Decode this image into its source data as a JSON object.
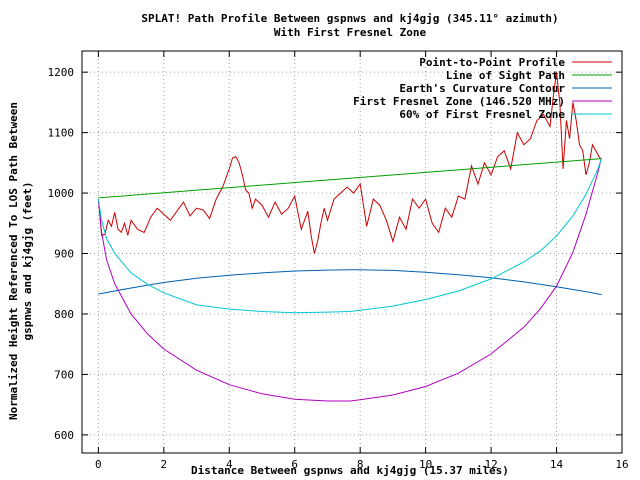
{
  "chart_data": {
    "type": "line",
    "title": "SPLAT! Path Profile Between gspnws and kj4gjg (345.11° azimuth)",
    "subtitle": "With First Fresnel Zone",
    "xlabel": "Distance Between gspnws and kj4gjg (15.37 miles)",
    "ylabel_line1": "Normalized Height Referenced To LOS Path Between",
    "ylabel_line2": "gspnws and kj4gjg (feet)",
    "xlim": [
      -0.5,
      16
    ],
    "ylim": [
      570,
      1235
    ],
    "x_ticks": [
      0,
      2,
      4,
      6,
      8,
      10,
      12,
      14,
      16
    ],
    "x_tick_labels": [
      "0",
      "2",
      "4",
      "6",
      "8",
      "10",
      "12",
      "14",
      "16"
    ],
    "y_ticks": [
      600,
      700,
      800,
      900,
      1000,
      1100,
      1200
    ],
    "y_tick_labels": [
      "600",
      "700",
      "800",
      "900",
      "1000",
      "1100",
      "1200"
    ],
    "grid": true,
    "legend_position": "top-right",
    "series": [
      {
        "name": "Point-to-Point Profile",
        "color": "#cc0000",
        "x": [
          0,
          0.1,
          0.2,
          0.3,
          0.4,
          0.5,
          0.6,
          0.7,
          0.8,
          0.9,
          1.0,
          1.2,
          1.4,
          1.6,
          1.8,
          2.0,
          2.2,
          2.4,
          2.6,
          2.8,
          3.0,
          3.2,
          3.4,
          3.6,
          3.8,
          4.0,
          4.1,
          4.2,
          4.3,
          4.4,
          4.5,
          4.6,
          4.7,
          4.8,
          5.0,
          5.2,
          5.4,
          5.6,
          5.8,
          6.0,
          6.2,
          6.4,
          6.5,
          6.6,
          6.7,
          6.8,
          6.9,
          7.0,
          7.2,
          7.4,
          7.6,
          7.8,
          8.0,
          8.2,
          8.4,
          8.6,
          8.8,
          9.0,
          9.2,
          9.4,
          9.6,
          9.8,
          10.0,
          10.2,
          10.4,
          10.6,
          10.8,
          11.0,
          11.2,
          11.4,
          11.6,
          11.8,
          12.0,
          12.2,
          12.4,
          12.6,
          12.8,
          13.0,
          13.2,
          13.4,
          13.6,
          13.8,
          13.9,
          14.0,
          14.1,
          14.2,
          14.3,
          14.4,
          14.5,
          14.6,
          14.7,
          14.8,
          14.9,
          15.0,
          15.1,
          15.2,
          15.3,
          15.37
        ],
        "y": [
          990,
          930,
          932,
          955,
          945,
          968,
          940,
          935,
          950,
          930,
          955,
          940,
          935,
          960,
          975,
          965,
          955,
          970,
          985,
          962,
          975,
          972,
          958,
          990,
          1010,
          1040,
          1058,
          1060,
          1050,
          1030,
          1005,
          1000,
          975,
          990,
          980,
          960,
          985,
          965,
          975,
          995,
          940,
          970,
          930,
          900,
          920,
          950,
          975,
          955,
          990,
          1000,
          1010,
          1000,
          1015,
          945,
          990,
          980,
          955,
          920,
          960,
          940,
          990,
          975,
          990,
          950,
          935,
          975,
          960,
          995,
          990,
          1045,
          1015,
          1050,
          1030,
          1060,
          1070,
          1040,
          1100,
          1080,
          1090,
          1120,
          1130,
          1110,
          1160,
          1200,
          1150,
          1040,
          1120,
          1090,
          1150,
          1120,
          1080,
          1070,
          1030,
          1050,
          1080,
          1070,
          1060,
          1055
        ]
      },
      {
        "name": "Line of Sight Path",
        "color": "#00a000",
        "x": [
          0,
          15.37
        ],
        "y": [
          992,
          1057
        ]
      },
      {
        "name": "Earth's Curvature Contour",
        "color": "#0060b0",
        "x": [
          0,
          1,
          2,
          3,
          4,
          5,
          6,
          7,
          7.69,
          8,
          9,
          10,
          11,
          12,
          13,
          14,
          15,
          15.37
        ],
        "y": [
          833,
          843,
          852,
          859,
          864,
          868,
          871,
          872.5,
          873,
          873,
          872,
          869,
          865,
          860,
          853,
          845,
          836,
          832
        ]
      },
      {
        "name": "First Fresnel Zone (146.520 MHz)",
        "color": "#b000c0",
        "x": [
          0,
          0.1,
          0.25,
          0.5,
          1,
          1.5,
          2,
          3,
          4,
          5,
          6,
          7,
          7.69,
          8,
          9,
          10,
          11,
          12,
          13,
          13.5,
          14,
          14.5,
          14.9,
          15.1,
          15.25,
          15.37
        ],
        "y": [
          990,
          935,
          890,
          850,
          800,
          767,
          742,
          707,
          683,
          668,
          659,
          656,
          656,
          658,
          666,
          680,
          702,
          734,
          778,
          808,
          846,
          902,
          965,
          1003,
          1032,
          1058
        ]
      },
      {
        "name": "60% of First Fresnel Zone",
        "color": "#00c8d0",
        "x": [
          0,
          0.1,
          0.25,
          0.5,
          1,
          1.5,
          2,
          3,
          4,
          5,
          6,
          7,
          7.69,
          8,
          9,
          10,
          11,
          12,
          13,
          13.5,
          14,
          14.5,
          14.9,
          15.1,
          15.25,
          15.37
        ],
        "y": [
          990,
          955,
          925,
          900,
          868,
          849,
          835,
          815,
          808,
          804,
          802,
          803,
          804,
          806,
          813,
          824,
          838,
          858,
          886,
          904,
          929,
          962,
          998,
          1021,
          1038,
          1057
        ]
      }
    ]
  }
}
